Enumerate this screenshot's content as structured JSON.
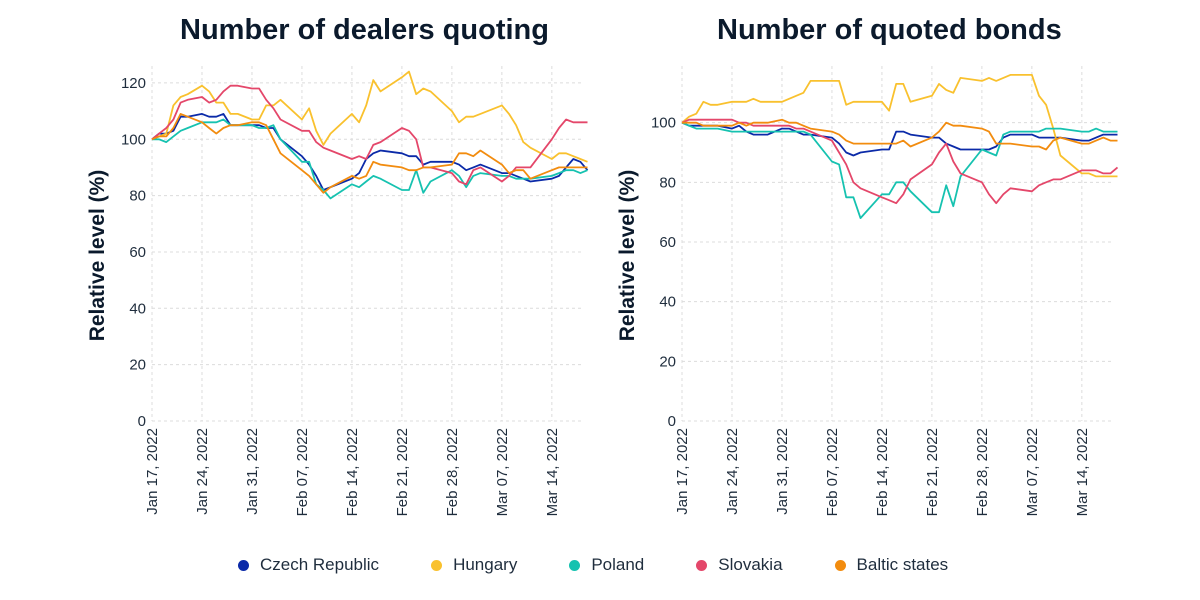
{
  "chart_data": [
    {
      "type": "line",
      "title": "Number of dealers quoting",
      "xlabel": "",
      "ylabel": "Relative level (%)",
      "ylim": [
        0,
        126
      ],
      "yticks": [
        0,
        20,
        40,
        60,
        80,
        100,
        120
      ],
      "xticks": [
        "Jan 17, 2022",
        "Jan 24, 2022",
        "Jan 31, 2022",
        "Feb 07, 2022",
        "Feb 14, 2022",
        "Feb 21, 2022",
        "Feb 28, 2022",
        "Mar 07, 2022",
        "Mar 14, 2022"
      ],
      "x_unit": "days since Jan 17, 2022",
      "xlim": [
        0,
        61
      ],
      "grid": true,
      "series": [
        {
          "name": "Czech Republic",
          "color": "#0b2aa8",
          "x": [
            0,
            1,
            2,
            3,
            4,
            5,
            7,
            8,
            9,
            10,
            11,
            12,
            14,
            15,
            16,
            17,
            18,
            21,
            22,
            23,
            24,
            25,
            28,
            29,
            30,
            31,
            32,
            35,
            36,
            37,
            38,
            39,
            42,
            43,
            44,
            45,
            46,
            49,
            50,
            51,
            52,
            53,
            56,
            57,
            58,
            59,
            60,
            61
          ],
          "values": [
            100,
            102,
            102,
            103,
            108,
            108,
            109,
            108,
            108,
            109,
            105,
            105,
            105,
            105,
            104,
            104,
            100,
            94,
            91,
            87,
            82,
            83,
            86,
            88,
            93,
            95,
            96,
            95,
            94,
            94,
            91,
            92,
            92,
            91,
            89,
            90,
            91,
            88,
            88,
            87,
            86,
            85,
            86,
            87,
            90,
            93,
            92,
            89
          ]
        },
        {
          "name": "Hungary",
          "color": "#f9c12e",
          "x": [
            0,
            1,
            2,
            3,
            4,
            5,
            7,
            8,
            9,
            10,
            11,
            12,
            14,
            15,
            16,
            17,
            18,
            21,
            22,
            23,
            24,
            25,
            28,
            29,
            30,
            31,
            32,
            35,
            36,
            37,
            38,
            39,
            42,
            43,
            44,
            45,
            46,
            49,
            50,
            51,
            52,
            53,
            56,
            57,
            58,
            59,
            60,
            61
          ],
          "values": [
            100,
            101,
            102,
            112,
            115,
            116,
            119,
            117,
            113,
            113,
            109,
            109,
            107,
            107,
            112,
            112,
            114,
            107,
            111,
            103,
            98,
            102,
            109,
            106,
            112,
            121,
            117,
            122,
            124,
            116,
            118,
            117,
            110,
            106,
            108,
            108,
            109,
            112,
            109,
            105,
            99,
            97,
            93,
            95,
            95,
            94,
            93,
            92
          ]
        },
        {
          "name": "Poland",
          "color": "#16c2b0",
          "x": [
            0,
            1,
            2,
            3,
            4,
            5,
            7,
            8,
            9,
            10,
            11,
            12,
            14,
            15,
            16,
            17,
            18,
            21,
            22,
            23,
            24,
            25,
            28,
            29,
            30,
            31,
            32,
            35,
            36,
            37,
            38,
            39,
            42,
            43,
            44,
            45,
            46,
            49,
            50,
            51,
            52,
            53,
            56,
            57,
            58,
            59,
            60,
            61
          ],
          "values": [
            100,
            100,
            99,
            101,
            103,
            104,
            106,
            106,
            106,
            107,
            105,
            105,
            105,
            104,
            104,
            105,
            100,
            92,
            92,
            84,
            82,
            79,
            84,
            83,
            85,
            87,
            86,
            82,
            82,
            89,
            81,
            85,
            89,
            87,
            83,
            87,
            88,
            87,
            87,
            86,
            86,
            86,
            87,
            88,
            89,
            89,
            88,
            89
          ]
        },
        {
          "name": "Slovakia",
          "color": "#e4476a",
          "x": [
            0,
            1,
            2,
            3,
            4,
            5,
            7,
            8,
            9,
            10,
            11,
            12,
            14,
            15,
            16,
            17,
            18,
            21,
            22,
            23,
            24,
            25,
            28,
            29,
            30,
            31,
            32,
            35,
            36,
            37,
            38,
            39,
            42,
            43,
            44,
            45,
            46,
            49,
            50,
            51,
            52,
            53,
            56,
            57,
            58,
            59,
            60,
            61
          ],
          "values": [
            100,
            102,
            104,
            107,
            113,
            114,
            115,
            113,
            114,
            117,
            119,
            119,
            118,
            118,
            114,
            111,
            107,
            103,
            103,
            99,
            97,
            96,
            93,
            94,
            93,
            98,
            99,
            104,
            103,
            100,
            90,
            90,
            88,
            85,
            84,
            89,
            90,
            85,
            87,
            90,
            90,
            90,
            100,
            104,
            107,
            106,
            106,
            106
          ]
        },
        {
          "name": "Baltic states",
          "color": "#f28c0f",
          "x": [
            0,
            1,
            2,
            3,
            4,
            5,
            7,
            8,
            9,
            10,
            11,
            12,
            14,
            15,
            16,
            17,
            18,
            21,
            22,
            23,
            24,
            25,
            28,
            29,
            30,
            31,
            32,
            35,
            36,
            37,
            38,
            39,
            42,
            43,
            44,
            45,
            46,
            49,
            50,
            51,
            52,
            53,
            56,
            57,
            58,
            59,
            60,
            61
          ],
          "values": [
            100,
            101,
            101,
            104,
            109,
            108,
            106,
            104,
            102,
            104,
            105,
            105,
            106,
            106,
            105,
            100,
            95,
            89,
            87,
            84,
            81,
            83,
            87,
            86,
            87,
            92,
            91,
            90,
            89,
            89,
            90,
            90,
            91,
            95,
            95,
            94,
            96,
            91,
            88,
            89,
            89,
            86,
            89,
            90,
            90,
            90,
            90,
            90
          ]
        }
      ]
    },
    {
      "type": "line",
      "title": "Number of quoted bonds",
      "xlabel": "",
      "ylabel": "Relative level (%)",
      "ylim": [
        0,
        119
      ],
      "yticks": [
        0,
        20,
        40,
        60,
        80,
        100
      ],
      "xticks": [
        "Jan 17, 2022",
        "Jan 24, 2022",
        "Jan 31, 2022",
        "Feb 07, 2022",
        "Feb 14, 2022",
        "Feb 21, 2022",
        "Feb 28, 2022",
        "Mar 07, 2022",
        "Mar 14, 2022"
      ],
      "x_unit": "days since Jan 17, 2022",
      "xlim": [
        0,
        61
      ],
      "grid": true,
      "series": [
        {
          "name": "Czech Republic",
          "color": "#0b2aa8",
          "x": [
            0,
            1,
            2,
            3,
            4,
            5,
            7,
            8,
            9,
            10,
            11,
            12,
            14,
            15,
            16,
            17,
            18,
            21,
            22,
            23,
            24,
            25,
            28,
            29,
            30,
            31,
            32,
            35,
            36,
            37,
            38,
            39,
            42,
            43,
            44,
            45,
            46,
            49,
            50,
            51,
            52,
            53,
            56,
            57,
            58,
            59,
            60,
            61
          ],
          "values": [
            100,
            99,
            99,
            99,
            99,
            99,
            98,
            99,
            97,
            96,
            96,
            96,
            98,
            98,
            97,
            96,
            96,
            95,
            93,
            90,
            89,
            90,
            91,
            91,
            97,
            97,
            96,
            95,
            95,
            93,
            92,
            91,
            91,
            91,
            92,
            95,
            96,
            96,
            95,
            95,
            95,
            95,
            94,
            94,
            95,
            96,
            96,
            96
          ]
        },
        {
          "name": "Hungary",
          "color": "#f9c12e",
          "x": [
            0,
            1,
            2,
            3,
            4,
            5,
            7,
            8,
            9,
            10,
            11,
            12,
            14,
            15,
            16,
            17,
            18,
            21,
            22,
            23,
            24,
            25,
            28,
            29,
            30,
            31,
            32,
            35,
            36,
            37,
            38,
            39,
            42,
            43,
            44,
            45,
            46,
            49,
            50,
            51,
            52,
            53,
            56,
            57,
            58,
            59,
            60,
            61
          ],
          "values": [
            100,
            102,
            103,
            107,
            106,
            106,
            107,
            107,
            107,
            108,
            107,
            107,
            107,
            108,
            109,
            110,
            114,
            114,
            114,
            106,
            107,
            107,
            107,
            104,
            113,
            113,
            107,
            109,
            113,
            111,
            110,
            115,
            114,
            115,
            114,
            115,
            116,
            116,
            109,
            106,
            98,
            89,
            83,
            83,
            82,
            82,
            82,
            82
          ]
        },
        {
          "name": "Poland",
          "color": "#16c2b0",
          "x": [
            0,
            1,
            2,
            3,
            4,
            5,
            7,
            8,
            9,
            10,
            11,
            12,
            14,
            15,
            16,
            17,
            18,
            21,
            22,
            23,
            24,
            25,
            28,
            29,
            30,
            31,
            32,
            35,
            36,
            37,
            38,
            39,
            42,
            43,
            44,
            45,
            46,
            49,
            50,
            51,
            52,
            53,
            56,
            57,
            58,
            59,
            60,
            61
          ],
          "values": [
            100,
            99,
            98,
            98,
            98,
            98,
            97,
            97,
            97,
            97,
            97,
            97,
            97,
            97,
            97,
            97,
            96,
            87,
            86,
            75,
            75,
            68,
            76,
            76,
            80,
            80,
            77,
            70,
            70,
            79,
            72,
            82,
            91,
            90,
            89,
            96,
            97,
            97,
            97,
            98,
            98,
            98,
            97,
            97,
            98,
            97,
            97,
            97
          ]
        },
        {
          "name": "Slovakia",
          "color": "#e4476a",
          "x": [
            0,
            1,
            2,
            3,
            4,
            5,
            7,
            8,
            9,
            10,
            11,
            12,
            14,
            15,
            16,
            17,
            18,
            21,
            22,
            23,
            24,
            25,
            28,
            29,
            30,
            31,
            32,
            35,
            36,
            37,
            38,
            39,
            42,
            43,
            44,
            45,
            46,
            49,
            50,
            51,
            52,
            53,
            56,
            57,
            58,
            59,
            60,
            61
          ],
          "values": [
            100,
            101,
            101,
            101,
            101,
            101,
            101,
            100,
            100,
            99,
            99,
            99,
            99,
            99,
            98,
            98,
            97,
            94,
            90,
            86,
            80,
            78,
            75,
            74,
            73,
            76,
            81,
            86,
            90,
            93,
            87,
            83,
            80,
            76,
            73,
            76,
            78,
            77,
            79,
            80,
            81,
            81,
            84,
            84,
            84,
            83,
            83,
            85
          ]
        },
        {
          "name": "Baltic states",
          "color": "#f28c0f",
          "x": [
            0,
            1,
            2,
            3,
            4,
            5,
            7,
            8,
            9,
            10,
            11,
            12,
            14,
            15,
            16,
            17,
            18,
            21,
            22,
            23,
            24,
            25,
            28,
            29,
            30,
            31,
            32,
            35,
            36,
            37,
            38,
            39,
            42,
            43,
            44,
            45,
            46,
            49,
            50,
            51,
            52,
            53,
            56,
            57,
            58,
            59,
            60,
            61
          ],
          "values": [
            100,
            100,
            100,
            99,
            99,
            99,
            99,
            100,
            99,
            100,
            100,
            100,
            101,
            100,
            100,
            99,
            98,
            97,
            96,
            94,
            93,
            93,
            93,
            93,
            93,
            94,
            92,
            95,
            97,
            100,
            99,
            99,
            98,
            97,
            93,
            93,
            93,
            92,
            92,
            91,
            94,
            95,
            93,
            93,
            94,
            95,
            94,
            94
          ]
        }
      ]
    }
  ],
  "legend": {
    "placement": "bottom-center",
    "items": [
      {
        "label": "Czech Republic",
        "color": "#0b2aa8"
      },
      {
        "label": "Hungary",
        "color": "#f9c12e"
      },
      {
        "label": "Poland",
        "color": "#16c2b0"
      },
      {
        "label": "Slovakia",
        "color": "#e4476a"
      },
      {
        "label": "Baltic states",
        "color": "#f28c0f"
      }
    ]
  }
}
